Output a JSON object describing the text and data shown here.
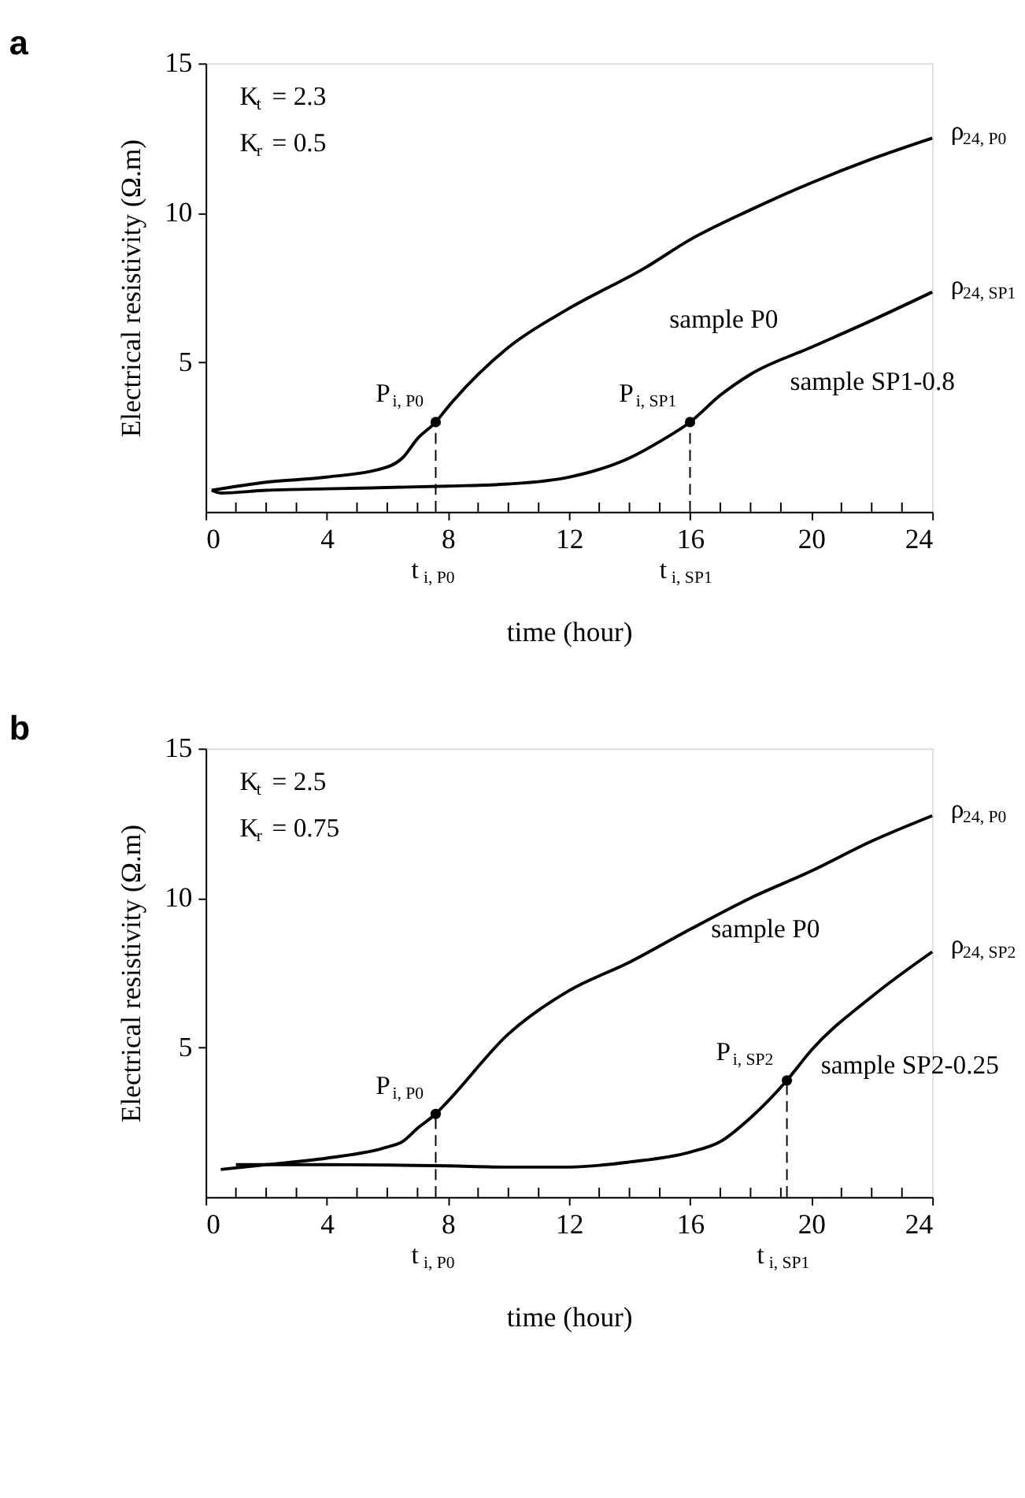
{
  "chart_data": [
    {
      "type": "line",
      "title": "a",
      "xlabel": "time (hour)",
      "ylabel": "Electrical resistivity (Ω.m)",
      "xlim": [
        0,
        24
      ],
      "ylim": [
        0,
        15
      ],
      "xticks": [
        0,
        {
          "value": 1,
          "label": null
        },
        {
          "value": 2,
          "label": null
        },
        {
          "value": 3,
          "label": null
        },
        4,
        {
          "value": 5,
          "label": null
        },
        {
          "value": 6,
          "label": null
        },
        {
          "value": 7,
          "label": null
        },
        8,
        {
          "value": 9,
          "label": null
        },
        {
          "value": 10,
          "label": null
        },
        {
          "value": 11,
          "label": null
        },
        12,
        {
          "value": 13,
          "label": null
        },
        {
          "value": 14,
          "label": null
        },
        {
          "value": 15,
          "label": null
        },
        16,
        {
          "value": 17,
          "label": null
        },
        {
          "value": 18,
          "label": null
        },
        {
          "value": 19,
          "label": null
        },
        20,
        {
          "value": 21,
          "label": null
        },
        {
          "value": 22,
          "label": null
        },
        {
          "value": 23,
          "label": null
        },
        24
      ],
      "yticks": [
        5,
        10,
        15
      ],
      "grid": false,
      "legend": false,
      "series": [
        {
          "color": "#000000",
          "x": [
            0.2,
            2,
            4,
            6,
            6.5,
            7,
            7.6,
            8,
            10,
            12,
            14.5,
            16,
            18,
            20,
            22,
            24
          ],
          "values": [
            0.72,
            0.99,
            1.16,
            1.5,
            1.8,
            2.45,
            3.0,
            3.5,
            5.5,
            6.8,
            8.15,
            9.1,
            10.1,
            11.0,
            11.8,
            12.5
          ]
        },
        {
          "color": "#000000",
          "x": [
            0.2,
            0.5,
            2,
            4,
            8,
            10,
            12,
            14,
            15,
            16,
            17,
            18,
            20,
            22,
            24
          ],
          "values": [
            0.72,
            0.63,
            0.72,
            0.77,
            0.86,
            0.93,
            1.16,
            1.8,
            2.35,
            3.0,
            3.9,
            4.6,
            5.5,
            6.4,
            7.35
          ]
        },
        {
          "type": "scatter",
          "color": "#000000",
          "marker": "circle",
          "x": [
            7.6,
            16
          ],
          "values": [
            3.0,
            3.0
          ]
        }
      ],
      "annotations": [
        "K$_{t}$ = 2.3",
        "K$_{r}$ = 0.5",
        "t$_{i, P0}$",
        "t$_{i, SP1}$",
        "sample P0",
        "sample SP1-0.8",
        {
          "text": "P$_{i, P0}$",
          "x": 7.6,
          "y": 3.0
        },
        {
          "text": "P$_{i, SP1}$",
          "x": 16,
          "y": 3.0
        },
        {
          "text": "ρ$_{24, P0}$",
          "x": 24,
          "y": 12.5
        },
        {
          "text": "ρ$_{24, SP1}$",
          "x": 24,
          "y": 7.35
        }
      ]
    },
    {
      "type": "line",
      "title": "b",
      "xlabel": "time (hour)",
      "ylabel": "Electrical resistivity (Ω.m)",
      "xlim": [
        0,
        24
      ],
      "ylim": [
        0,
        15
      ],
      "xticks": [
        0,
        {
          "value": 1,
          "label": null
        },
        {
          "value": 2,
          "label": null
        },
        {
          "value": 3,
          "label": null
        },
        4,
        {
          "value": 5,
          "label": null
        },
        {
          "value": 6,
          "label": null
        },
        {
          "value": 7,
          "label": null
        },
        8,
        {
          "value": 9,
          "label": null
        },
        {
          "value": 10,
          "label": null
        },
        {
          "value": 11,
          "label": null
        },
        12,
        {
          "value": 13,
          "label": null
        },
        {
          "value": 14,
          "label": null
        },
        {
          "value": 15,
          "label": null
        },
        16,
        {
          "value": 17,
          "label": null
        },
        {
          "value": 18,
          "label": null
        },
        {
          "value": 19,
          "label": null
        },
        20,
        {
          "value": 21,
          "label": null
        },
        {
          "value": 22,
          "label": null
        },
        {
          "value": 23,
          "label": null
        },
        24
      ],
      "yticks": [
        5,
        10,
        15
      ],
      "grid": false,
      "legend": false,
      "series": [
        {
          "color": "#000000",
          "x": [
            0.5,
            2,
            4,
            6,
            6.5,
            7,
            7.6,
            8,
            10,
            12,
            14,
            16,
            18,
            20,
            22,
            24
          ],
          "values": [
            0.92,
            1.08,
            1.3,
            1.67,
            1.85,
            2.3,
            2.78,
            3.2,
            5.45,
            6.9,
            7.85,
            8.95,
            10.0,
            10.9,
            11.9,
            12.75
          ]
        },
        {
          "color": "#000000",
          "x": [
            1,
            2,
            4,
            6,
            8,
            10,
            12,
            14,
            16,
            17,
            18,
            19.2,
            20,
            22,
            24
          ],
          "values": [
            1.08,
            1.08,
            1.08,
            1.07,
            1.04,
            1.0,
            1.0,
            1.17,
            1.5,
            1.85,
            2.65,
            3.9,
            4.9,
            6.7,
            8.2
          ]
        },
        {
          "type": "scatter",
          "color": "#000000",
          "marker": "circle",
          "x": [
            7.6,
            19.2
          ],
          "values": [
            2.78,
            3.9
          ]
        }
      ],
      "annotations": [
        "K$_{t}$ = 2.5",
        "K$_{r}$ = 0.75",
        "t$_{i, P0}$",
        "t$_{i, SP1}$",
        "sample P0",
        "sample SP2-0.25",
        {
          "text": "P$_{i, P0}$",
          "x": 7.6,
          "y": 2.78
        },
        {
          "text": "P$_{i, SP2}$",
          "x": 19.2,
          "y": 3.9
        },
        {
          "text": "ρ$_{24, P0}$",
          "x": 24,
          "y": 12.75
        },
        {
          "text": "ρ$_{24, SP2}$",
          "x": 24,
          "y": 8.2
        }
      ]
    }
  ]
}
